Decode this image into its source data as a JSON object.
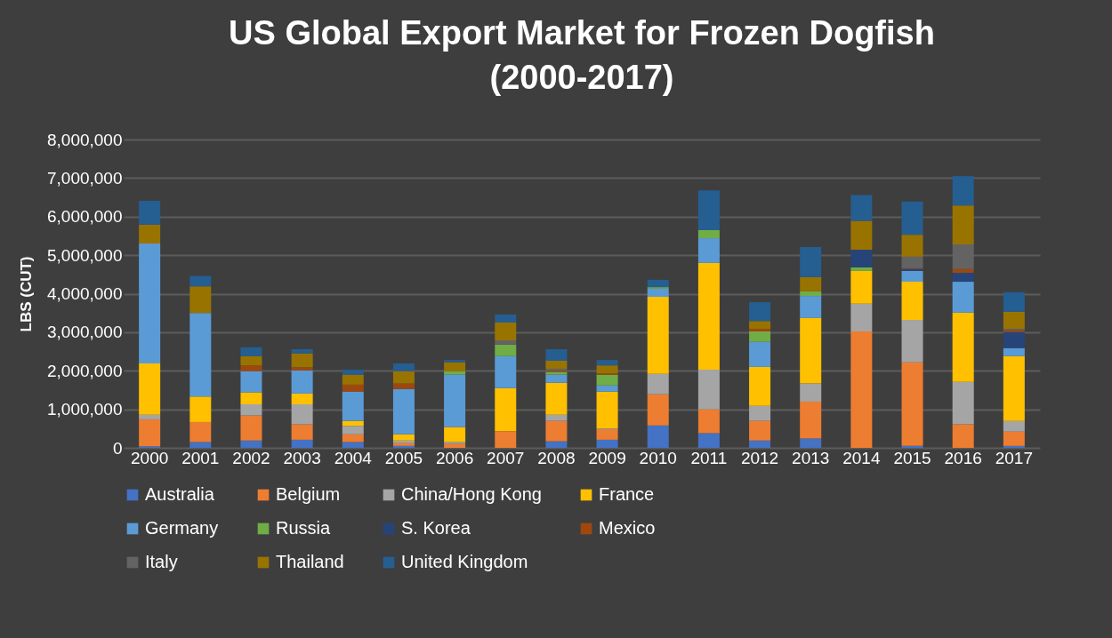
{
  "chart_data": {
    "type": "bar",
    "stacked": true,
    "title": "US Global Export Market for Frozen Dogfish\n(2000-2017)",
    "ylabel": "LBS (CUT)",
    "categories": [
      "2000",
      "2001",
      "2002",
      "2003",
      "2004",
      "2005",
      "2006",
      "2007",
      "2008",
      "2009",
      "2010",
      "2011",
      "2012",
      "2013",
      "2014",
      "2015",
      "2016",
      "2017"
    ],
    "ylim": [
      0,
      8000000
    ],
    "yticks": [
      0,
      {
        "value": 1000000,
        "label": "1,000,000"
      },
      {
        "value": 2000000,
        "label": "2,000,000"
      },
      {
        "value": 3000000,
        "label": "3,000,000"
      },
      {
        "value": 4000000,
        "label": "4,000,000"
      },
      {
        "value": 5000000,
        "label": "5,000,000"
      },
      {
        "value": 6000000,
        "label": "6,000,000"
      },
      {
        "value": 7000000,
        "label": "7,000,000"
      },
      {
        "value": 8000000,
        "label": "8,000,000"
      }
    ],
    "grid": "y",
    "legend": "bottom",
    "series": [
      {
        "name": "Australia",
        "color": "#4472c4",
        "values": [
          40000,
          150000,
          190000,
          210000,
          150000,
          50000,
          0,
          0,
          170000,
          210000,
          580000,
          380000,
          190000,
          240000,
          0,
          50000,
          0,
          50000
        ]
      },
      {
        "name": "Belgium",
        "color": "#ed7d31",
        "values": [
          700000,
          520000,
          650000,
          400000,
          200000,
          70000,
          100000,
          430000,
          530000,
          280000,
          810000,
          620000,
          510000,
          960000,
          3020000,
          2170000,
          610000,
          370000
        ]
      },
      {
        "name": "China/Hong Kong",
        "color": "#a5a5a5",
        "values": [
          120000,
          null,
          290000,
          520000,
          220000,
          70000,
          50000,
          0,
          160000,
          20000,
          530000,
          1030000,
          390000,
          470000,
          720000,
          1100000,
          1100000,
          280000
        ]
      },
      {
        "name": "France",
        "color": "#ffc000",
        "values": [
          1330000,
          660000,
          310000,
          280000,
          130000,
          160000,
          390000,
          1120000,
          830000,
          950000,
          2000000,
          2770000,
          1010000,
          1700000,
          850000,
          990000,
          1800000,
          1680000
        ]
      },
      {
        "name": "Germany",
        "color": "#5b9bd5",
        "values": [
          3110000,
          2170000,
          550000,
          600000,
          760000,
          1180000,
          1360000,
          830000,
          210000,
          160000,
          210000,
          640000,
          650000,
          570000,
          0,
          280000,
          800000,
          210000
        ]
      },
      {
        "name": "Russia",
        "color": "#70ad47",
        "values": [
          0,
          0,
          0,
          0,
          0,
          0,
          90000,
          300000,
          70000,
          280000,
          40000,
          210000,
          270000,
          120000,
          90000,
          0,
          0,
          0
        ]
      },
      {
        "name": "S. Korea",
        "color": "#264478",
        "values": [
          0,
          0,
          0,
          0,
          0,
          0,
          0,
          0,
          0,
          0,
          0,
          0,
          0,
          0,
          460000,
          50000,
          230000,
          410000
        ]
      },
      {
        "name": "Mexico",
        "color": "#9e480e",
        "values": [
          0,
          0,
          150000,
          80000,
          180000,
          140000,
          0,
          0,
          30000,
          30000,
          0,
          0,
          70000,
          0,
          0,
          20000,
          100000,
          50000
        ]
      },
      {
        "name": "Italy",
        "color": "#636363",
        "values": [
          0,
          0,
          0,
          0,
          null,
          0,
          0,
          110000,
          50000,
          null,
          0,
          0,
          null,
          0,
          null,
          300000,
          640000,
          40000
        ]
      },
      {
        "name": "Thailand",
        "color": "#997300",
        "values": [
          490000,
          690000,
          240000,
          360000,
          260000,
          320000,
          230000,
          460000,
          210000,
          210000,
          0,
          0,
          200000,
          370000,
          750000,
          570000,
          1010000,
          440000
        ]
      },
      {
        "name": "United Kingdom",
        "color": "#255e91",
        "values": [
          620000,
          270000,
          230000,
          110000,
          130000,
          200000,
          60000,
          210000,
          300000,
          140000,
          190000,
          1030000,
          490000,
          780000,
          670000,
          860000,
          760000,
          510000
        ]
      }
    ]
  }
}
